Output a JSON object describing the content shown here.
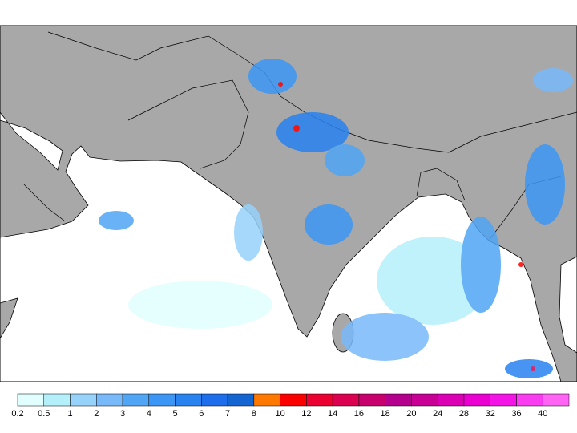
{
  "legend": {
    "labels": [
      "0.2",
      "0.5",
      "1",
      "2",
      "3",
      "4",
      "5",
      "6",
      "7",
      "8",
      "10",
      "12",
      "14",
      "16",
      "18",
      "20",
      "24",
      "28",
      "32",
      "36",
      "40"
    ],
    "colors": [
      "#e1ffff",
      "#b4f0fa",
      "#96d2fa",
      "#78b9fa",
      "#50a5f5",
      "#3c96f5",
      "#2882f0",
      "#1e6eeb",
      "#1464d2",
      "#ff7800",
      "#fa0000",
      "#eb0032",
      "#dc0050",
      "#c8006e",
      "#b4008c",
      "#c80096",
      "#dc00b4",
      "#eb00d2",
      "#f514e6",
      "#fa3cf0",
      "#ff64f5"
    ]
  }
}
